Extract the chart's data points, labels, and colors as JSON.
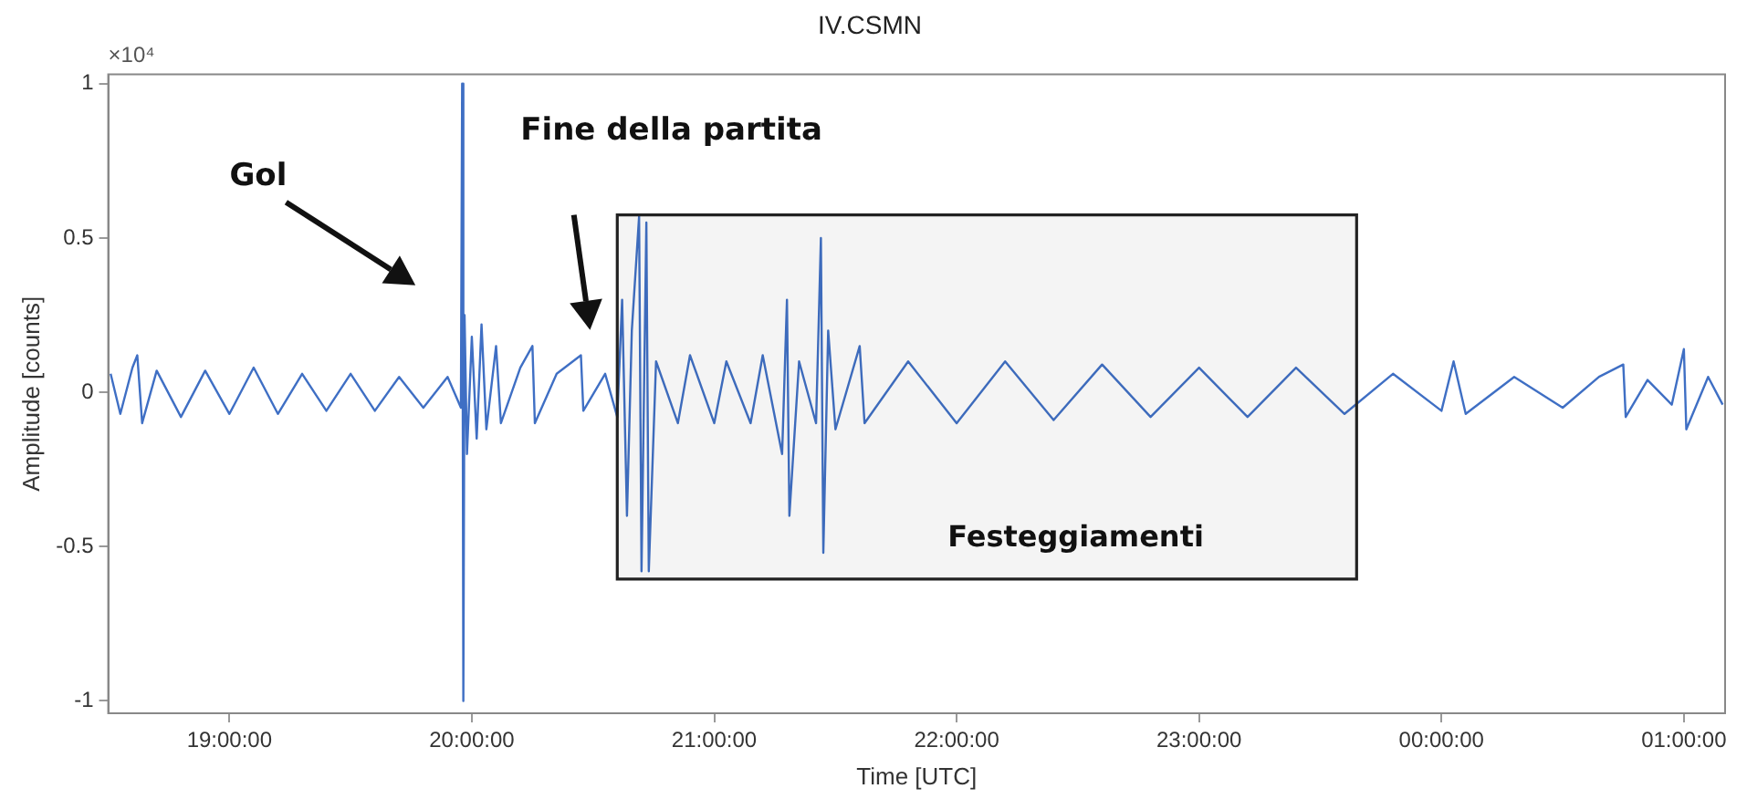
{
  "chart_data": {
    "type": "line",
    "title": "IV.CSMN",
    "xlabel": "Time [UTC]",
    "ylabel": "Amplitude [counts]",
    "annotations": [
      "×10⁴",
      "Gol",
      "Fine della partita"
    ],
    "x": [
      "--07-11T18:30:36",
      "--07-11T18:33",
      "--07-11T18:36",
      "--07-11T18:37:12",
      "--07-11T18:38:24",
      "--07-11T18:42",
      "--07-11T18:48",
      "--07-11T18:54",
      "--07-11T19:00",
      "--07-11T19:06",
      "--07-11T19:12",
      "--07-11T19:18",
      "--07-11T19:24",
      "--07-11T19:30",
      "--07-11T19:36",
      "--07-11T19:42",
      "--07-11T19:48",
      "--07-11T19:54",
      "--07-11T19:57:18",
      "--07-11T19:57:36",
      "--07-11T19:57:54",
      "--07-11T19:58:12",
      "--07-11T19:58:48",
      "--07-11T20:00",
      "--07-11T20:01:12",
      "--07-11T20:02:24",
      "--07-11T20:03:36",
      "--07-11T20:06",
      "--07-11T20:07:12",
      "--07-11T20:12",
      "--07-11T20:15",
      "--07-11T20:15:36",
      "--07-11T20:21",
      "--07-11T20:27",
      "--07-11T20:27:36",
      "--07-11T20:33",
      "--07-11T20:36",
      "--07-11T20:37:12",
      "--07-11T20:38:24",
      "--07-11T20:39:36",
      "--07-11T20:41:24",
      "--07-11T20:42",
      "--07-11T20:43:12",
      "--07-11T20:43:48",
      "--07-11T20:45:36",
      "--07-11T20:51",
      "--07-11T20:54",
      "--07-11T21:00",
      "--07-11T21:03",
      "--07-11T21:09",
      "--07-11T21:12",
      "--07-11T21:16:48",
      "--07-11T21:18",
      "--07-11T21:18:36",
      "--07-11T21:21",
      "--07-11T21:25:12",
      "--07-11T21:26:24",
      "--07-11T21:27",
      "--07-11T21:28:12",
      "--07-11T21:30",
      "--07-11T21:36",
      "--07-11T21:37:12",
      "--07-11T21:48",
      "--07-11T22:00",
      "--07-11T22:12",
      "--07-11T22:24",
      "--07-11T22:36",
      "--07-11T22:48",
      "--07-11T23:00",
      "--07-11T23:12",
      "--07-11T23:24",
      "--07-11T23:36",
      "--07-11T23:48",
      "--07-12T00:00",
      "--07-12T00:03",
      "--07-12T00:06",
      "--07-12T00:18",
      "--07-12T00:30",
      "--07-12T00:39",
      "--07-12T00:45",
      "--07-12T00:45:36",
      "--07-12T00:51",
      "--07-12T00:57",
      "--07-12T01:00",
      "--07-12T01:00:36",
      "--07-12T01:06",
      "--07-12T01:09:36"
    ],
    "series": [
      {
        "color": "#3f6fc4",
        "values": [
          0.06,
          -0.07,
          0.08,
          0.12,
          -0.1,
          0.07,
          -0.08,
          0.07,
          -0.07,
          0.08,
          -0.07,
          0.06,
          -0.06,
          0.06,
          -0.06,
          0.05,
          -0.05,
          0.05,
          -0.05,
          1.0,
          -1.0,
          0.25,
          -0.2,
          0.18,
          -0.15,
          0.22,
          -0.12,
          0.15,
          -0.1,
          0.08,
          0.15,
          -0.1,
          0.06,
          0.12,
          -0.06,
          0.06,
          -0.08,
          0.3,
          -0.4,
          0.2,
          0.57,
          -0.58,
          0.55,
          -0.58,
          0.1,
          -0.1,
          0.12,
          -0.1,
          0.1,
          -0.1,
          0.12,
          -0.2,
          0.3,
          -0.4,
          0.1,
          -0.1,
          0.5,
          -0.52,
          0.2,
          -0.12,
          0.15,
          -0.1,
          0.1,
          -0.1,
          0.1,
          -0.09,
          0.09,
          -0.08,
          0.08,
          -0.08,
          0.08,
          -0.07,
          0.06,
          -0.06,
          0.1,
          -0.07,
          0.05,
          -0.05,
          0.05,
          0.09,
          -0.08,
          0.04,
          -0.04,
          0.14,
          -0.12,
          0.05,
          -0.04
        ]
      }
    ],
    "xlim": [
      "--07-11T18:30",
      "--07-12T01:10:12"
    ],
    "ylim": [
      -1.04,
      1.03
    ],
    "xticks": [
      {
        "value": "--07-11T19:00",
        "label": "19:00:00"
      },
      {
        "value": "--07-11T20:00",
        "label": "20:00:00"
      },
      {
        "value": "--07-11T21:00",
        "label": "21:00:00"
      },
      {
        "value": "--07-11T22:00",
        "label": "22:00:00"
      },
      {
        "value": "--07-11T23:00",
        "label": "23:00:00"
      },
      {
        "value": "--07-12T00:00",
        "label": "00:00:00"
      },
      {
        "value": "--07-12T01:00",
        "label": "01:00:00"
      }
    ],
    "yticks": [
      -1,
      -0.5,
      0,
      0.5,
      1
    ],
    "bands": [
      {
        "axis": "x",
        "from": "--07-11T20:36",
        "to": "--07-11T23:39",
        "label": "Festeggiamenti",
        "color": "#222222"
      }
    ],
    "grid": false,
    "marker": "none",
    "line_style": "solid",
    "legend": false
  }
}
